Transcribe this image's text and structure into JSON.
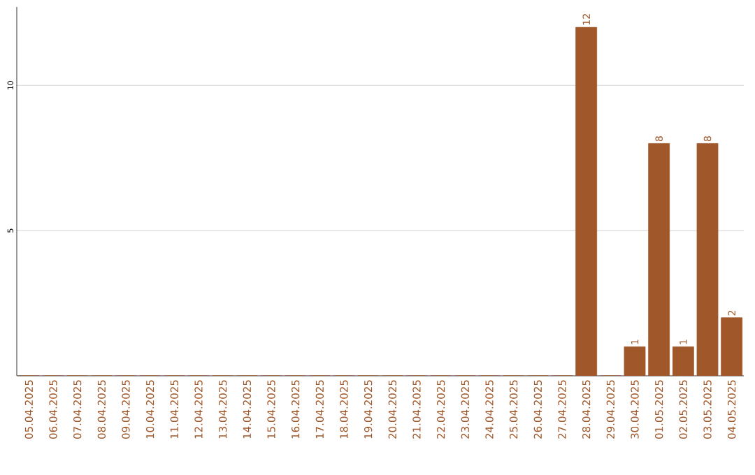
{
  "chart_data": {
    "type": "bar",
    "categories": [
      "05.04.2025",
      "06.04.2025",
      "07.04.2025",
      "08.04.2025",
      "09.04.2025",
      "10.04.2025",
      "11.04.2025",
      "12.04.2025",
      "13.04.2025",
      "14.04.2025",
      "15.04.2025",
      "16.04.2025",
      "17.04.2025",
      "18.04.2025",
      "19.04.2025",
      "20.04.2025",
      "21.04.2025",
      "22.04.2025",
      "23.04.2025",
      "24.04.2025",
      "25.04.2025",
      "26.04.2025",
      "27.04.2025",
      "28.04.2025",
      "29.04.2025",
      "30.04.2025",
      "01.05.2025",
      "02.05.2025",
      "03.05.2025",
      "04.05.2025"
    ],
    "values": [
      0,
      0,
      0,
      0,
      0,
      0,
      0,
      0,
      0,
      0,
      0,
      0,
      0,
      0,
      0,
      0,
      0,
      0,
      0,
      0,
      0,
      0,
      0,
      12,
      0,
      1,
      8,
      1,
      8,
      2
    ],
    "value_labels": [
      null,
      null,
      null,
      null,
      null,
      null,
      null,
      null,
      null,
      null,
      null,
      null,
      null,
      null,
      null,
      null,
      null,
      null,
      null,
      null,
      null,
      null,
      null,
      "12",
      null,
      "1",
      "8",
      "1",
      "8",
      "2"
    ],
    "color": "#a0582a",
    "ylim": [
      0,
      12.7
    ],
    "yticks": [
      5,
      10
    ],
    "grid": "y"
  }
}
